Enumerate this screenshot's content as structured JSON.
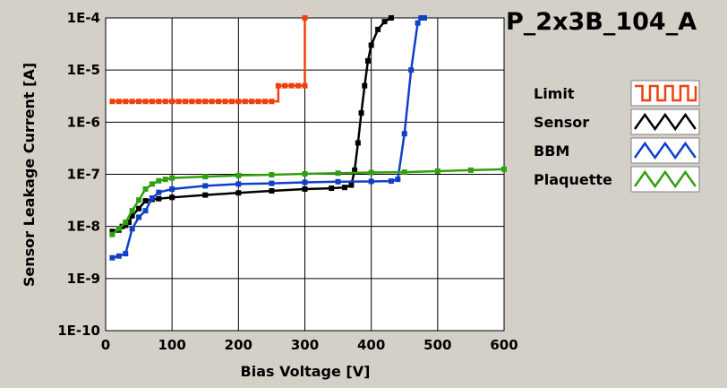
{
  "chart_data": {
    "type": "line",
    "title": "P_2x3B_104_A",
    "xlabel": "Bias Voltage [V]",
    "ylabel": "Sensor Leakage Current [A]",
    "xlim": [
      0,
      600
    ],
    "ylim": [
      1e-10,
      0.0001
    ],
    "yscale": "log",
    "grid": true,
    "legend_position": "right",
    "x_ticks": [
      0,
      100,
      200,
      300,
      400,
      500,
      600
    ],
    "x_tick_labels": [
      "0",
      "100",
      "200",
      "300",
      "400",
      "500",
      "600"
    ],
    "y_ticks": [
      1e-10,
      1e-09,
      1e-08,
      1e-07,
      1e-06,
      1e-05,
      0.0001
    ],
    "y_tick_labels": [
      "1E-10",
      "1E-9",
      "1E-8",
      "1E-7",
      "1E-6",
      "1E-5",
      "1E-4"
    ],
    "series": [
      {
        "name": "Limit",
        "color": "#f04010",
        "step": true,
        "x": [
          10,
          20,
          30,
          40,
          50,
          60,
          70,
          80,
          90,
          100,
          110,
          120,
          130,
          140,
          150,
          160,
          170,
          180,
          190,
          200,
          210,
          220,
          230,
          240,
          250,
          260,
          270,
          280,
          290,
          300,
          300
        ],
        "y": [
          2.5e-06,
          2.5e-06,
          2.5e-06,
          2.5e-06,
          2.5e-06,
          2.5e-06,
          2.5e-06,
          2.5e-06,
          2.5e-06,
          2.5e-06,
          2.5e-06,
          2.5e-06,
          2.5e-06,
          2.5e-06,
          2.5e-06,
          2.5e-06,
          2.5e-06,
          2.5e-06,
          2.5e-06,
          2.5e-06,
          2.5e-06,
          2.5e-06,
          2.5e-06,
          2.5e-06,
          2.5e-06,
          5e-06,
          5e-06,
          5e-06,
          5e-06,
          5e-06,
          0.0001
        ]
      },
      {
        "name": "Sensor",
        "color": "#000000",
        "x": [
          10,
          20,
          25,
          30,
          35,
          40,
          50,
          60,
          70,
          80,
          100,
          150,
          200,
          250,
          300,
          340,
          360,
          370,
          375,
          380,
          385,
          390,
          395,
          400,
          410,
          420,
          430
        ],
        "y": [
          8e-09,
          8.5e-09,
          1e-08,
          1.05e-08,
          1.2e-08,
          1.6e-08,
          2.2e-08,
          3.1e-08,
          3.3e-08,
          3.4e-08,
          3.6e-08,
          4e-08,
          4.4e-08,
          4.8e-08,
          5.2e-08,
          5.4e-08,
          5.6e-08,
          6.2e-08,
          1.2e-07,
          4e-07,
          1.5e-06,
          5e-06,
          1.5e-05,
          3e-05,
          6e-05,
          8.5e-05,
          0.0001
        ]
      },
      {
        "name": "BBM",
        "color": "#1040c8",
        "x": [
          10,
          20,
          30,
          40,
          50,
          60,
          70,
          80,
          100,
          150,
          200,
          250,
          300,
          350,
          400,
          430,
          440,
          450,
          460,
          470,
          475,
          480
        ],
        "y": [
          2.5e-09,
          2.7e-09,
          3e-09,
          9e-09,
          1.5e-08,
          2e-08,
          3.5e-08,
          4.5e-08,
          5.2e-08,
          6e-08,
          6.5e-08,
          6.7e-08,
          7e-08,
          7.2e-08,
          7.3e-08,
          7.4e-08,
          8e-08,
          6e-07,
          1e-05,
          8e-05,
          0.0001,
          0.0001
        ]
      },
      {
        "name": "Plaquette",
        "color": "#30a010",
        "x": [
          10,
          20,
          30,
          40,
          50,
          60,
          70,
          80,
          90,
          100,
          150,
          200,
          250,
          300,
          350,
          400,
          450,
          500,
          550,
          600
        ],
        "y": [
          7e-09,
          9e-09,
          1.2e-08,
          2e-08,
          3.2e-08,
          5.2e-08,
          6.5e-08,
          7.5e-08,
          8e-08,
          8.5e-08,
          9e-08,
          9.5e-08,
          9.8e-08,
          1.02e-07,
          1.05e-07,
          1.08e-07,
          1.1e-07,
          1.15e-07,
          1.2e-07,
          1.25e-07
        ]
      }
    ]
  }
}
